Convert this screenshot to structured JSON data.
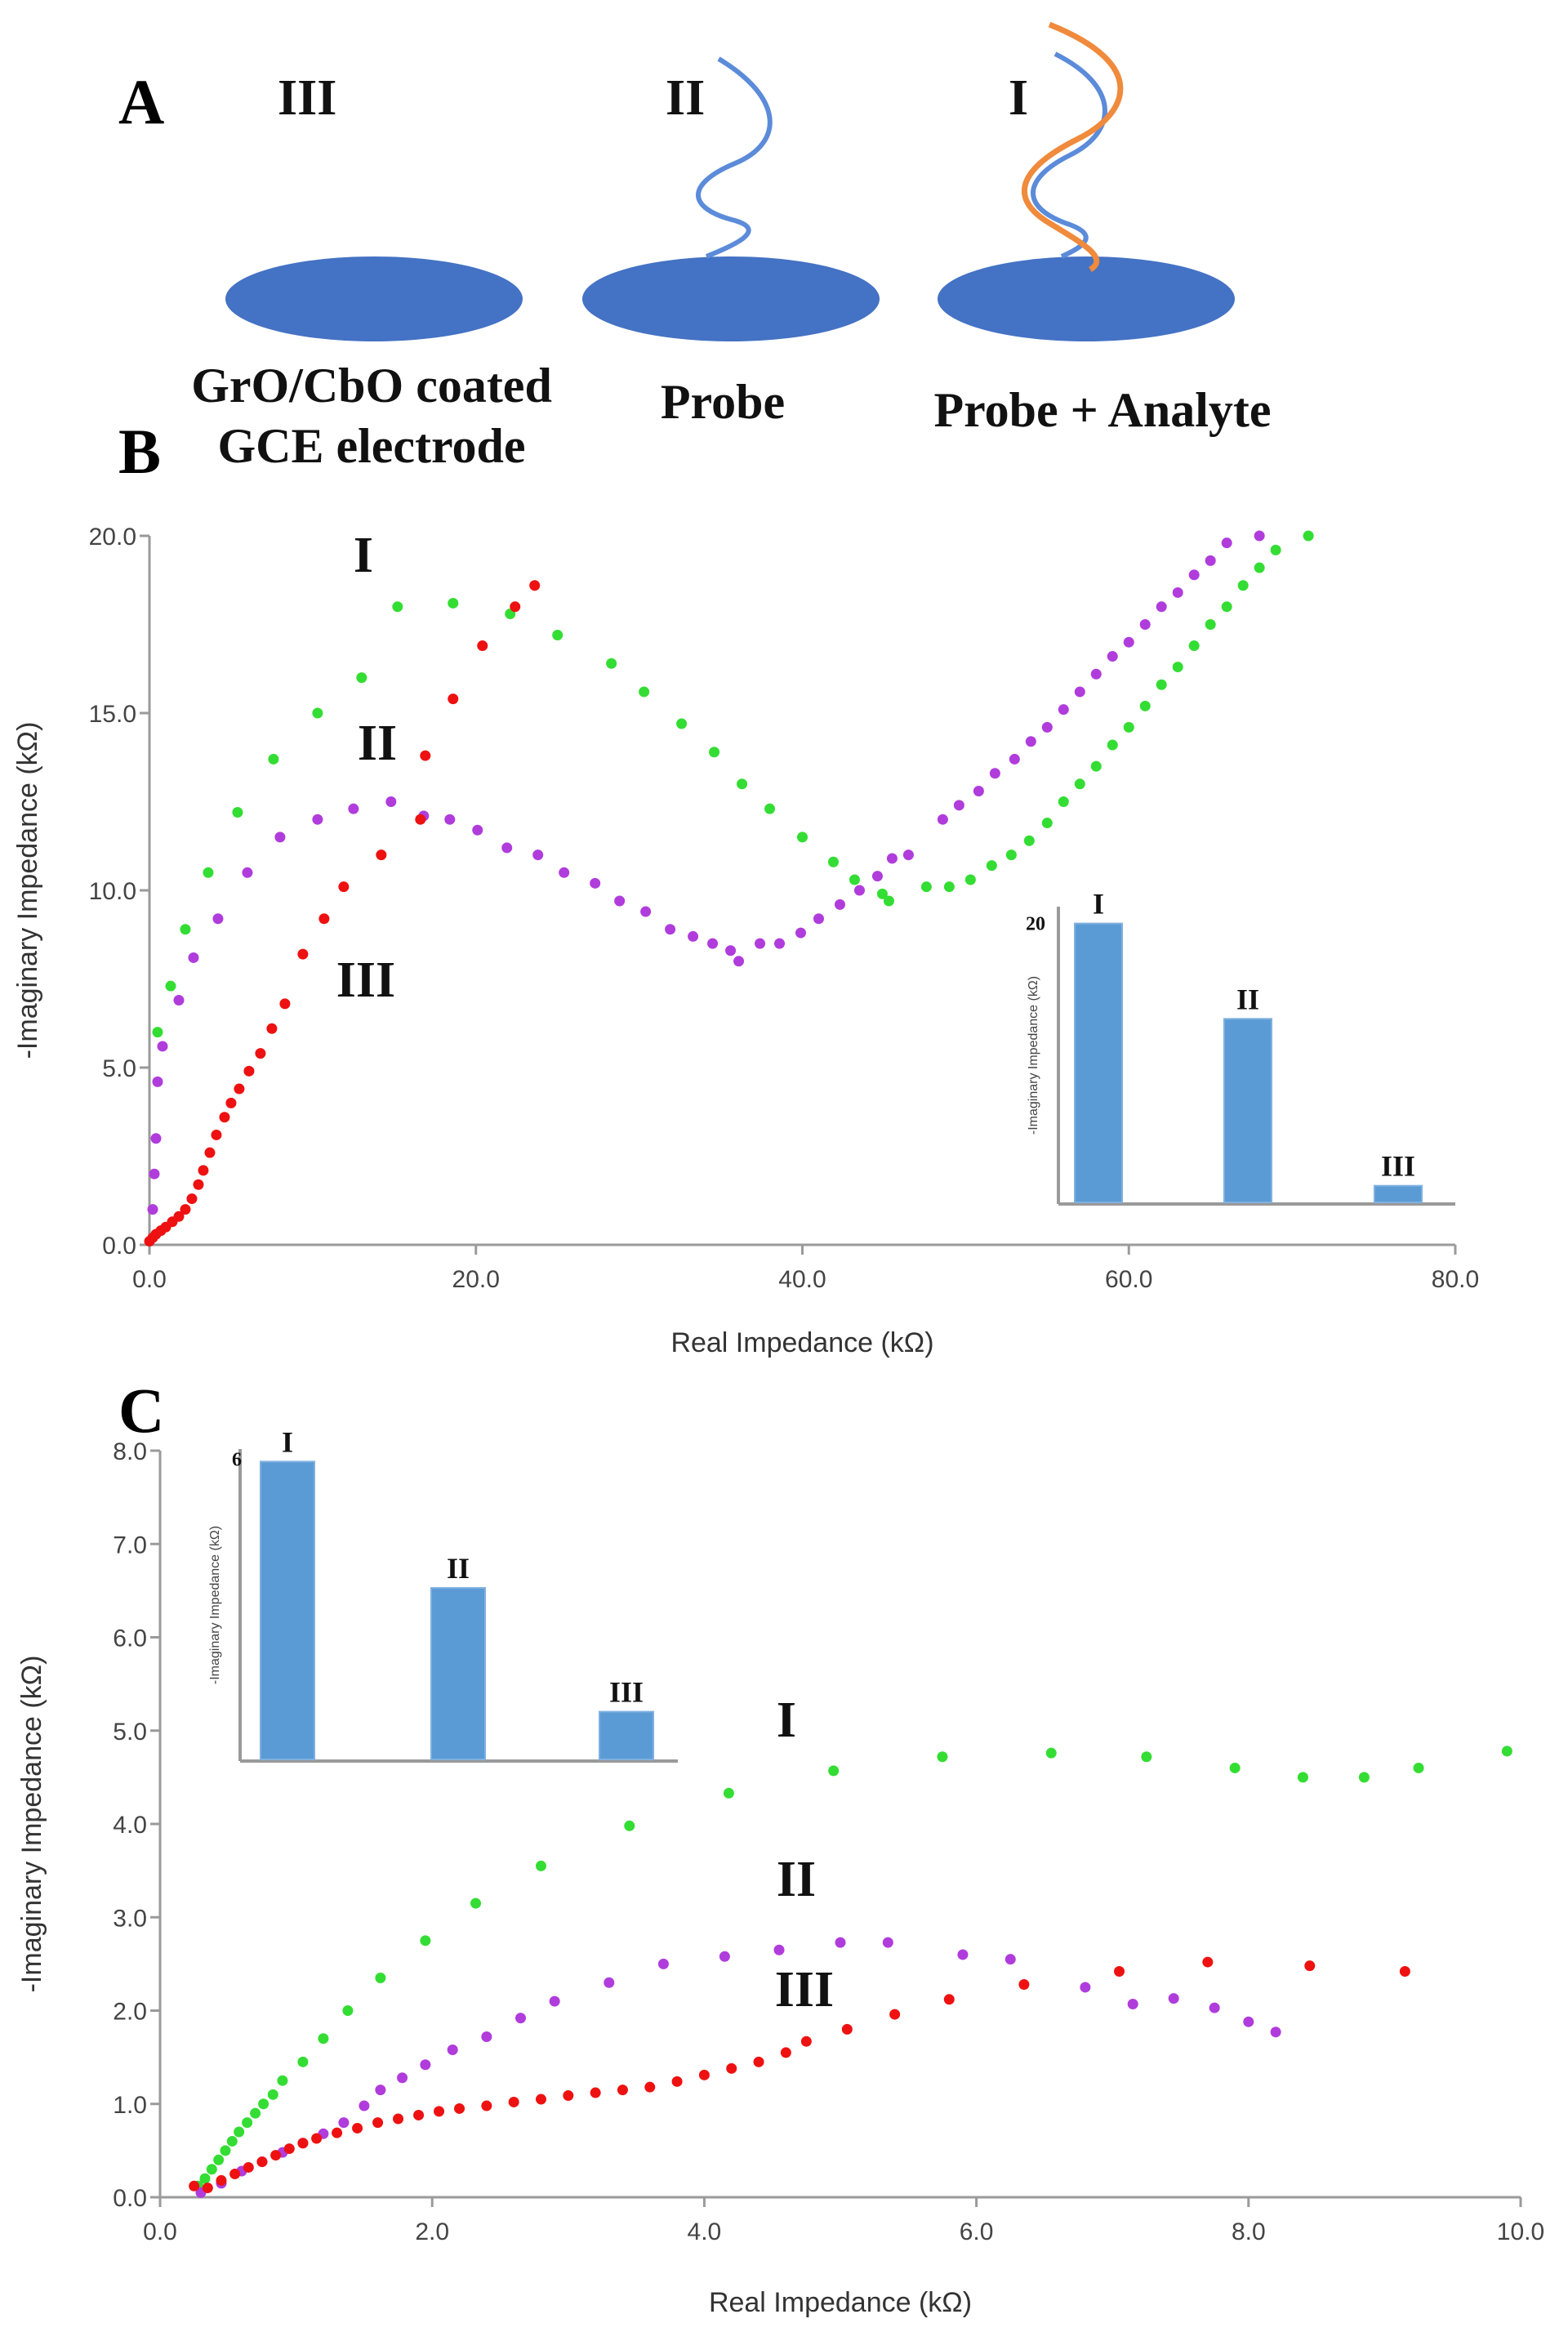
{
  "panel_a": {
    "letter": "A",
    "schematics": [
      {
        "numeral": "III",
        "label_lines": [
          "GrO/CbO coated",
          "GCE electrode"
        ],
        "strands": []
      },
      {
        "numeral": "II",
        "label_lines": [
          "Probe"
        ],
        "strands": [
          "probe"
        ]
      },
      {
        "numeral": "I",
        "label_lines": [
          "Probe + Analyte"
        ],
        "strands": [
          "probe",
          "analyte"
        ]
      }
    ]
  },
  "colors": {
    "electrode": "#4472c4",
    "probe_strand": "#5b8bd9",
    "analyte_strand": "#f08a3c",
    "series_I": "#33dd33",
    "series_II": "#b03cdc",
    "series_III": "#ee1111",
    "inset_bar": "#5b9bd5",
    "axis": "#9a9a9a",
    "tick_text": "#444444"
  },
  "chart_data": [
    {
      "panel": "B",
      "type": "scatter",
      "xlabel": "Real Impedance (kΩ)",
      "ylabel": "-Imaginary Impedance (kΩ)",
      "xlim": [
        0,
        80
      ],
      "ylim": [
        0,
        20
      ],
      "xticks": [
        "0.0",
        "20.0",
        "40.0",
        "60.0",
        "80.0"
      ],
      "xtick_values": [
        0,
        20,
        40,
        60,
        80
      ],
      "yticks": [
        "0.0",
        "5.0",
        "10.0",
        "15.0",
        "20.0"
      ],
      "ytick_values": [
        0,
        5,
        10,
        15,
        20
      ],
      "grid": false,
      "series": [
        {
          "name": "I",
          "color_key": "series_I",
          "points": [
            [
              0.5,
              6
            ],
            [
              1.3,
              7.3
            ],
            [
              2.2,
              8.9
            ],
            [
              3.6,
              10.5
            ],
            [
              5.4,
              12.2
            ],
            [
              7.6,
              13.7
            ],
            [
              10.3,
              15.0
            ],
            [
              13.0,
              16.0
            ],
            [
              15.2,
              18.0
            ],
            [
              18.6,
              18.1
            ],
            [
              22.1,
              17.8
            ],
            [
              25.0,
              17.2
            ],
            [
              28.3,
              16.4
            ],
            [
              30.3,
              15.6
            ],
            [
              32.6,
              14.7
            ],
            [
              34.6,
              13.9
            ],
            [
              36.3,
              13.0
            ],
            [
              38.0,
              12.3
            ],
            [
              40.0,
              11.5
            ],
            [
              41.9,
              10.8
            ],
            [
              43.2,
              10.3
            ],
            [
              44.9,
              9.9
            ],
            [
              45.3,
              9.7
            ],
            [
              47.6,
              10.1
            ],
            [
              49.0,
              10.1
            ],
            [
              50.3,
              10.3
            ],
            [
              51.6,
              10.7
            ],
            [
              52.8,
              11.0
            ],
            [
              53.9,
              11.4
            ],
            [
              55.0,
              11.9
            ],
            [
              56.0,
              12.5
            ],
            [
              57.0,
              13.0
            ],
            [
              58.0,
              13.5
            ],
            [
              59.0,
              14.1
            ],
            [
              60.0,
              14.6
            ],
            [
              61.0,
              15.2
            ],
            [
              62.0,
              15.8
            ],
            [
              63.0,
              16.3
            ],
            [
              64.0,
              16.9
            ],
            [
              65.0,
              17.5
            ],
            [
              66.0,
              18.0
            ],
            [
              67.0,
              18.6
            ],
            [
              68.0,
              19.1
            ],
            [
              69.0,
              19.6
            ],
            [
              71.0,
              20.0
            ]
          ]
        },
        {
          "name": "II",
          "color_key": "series_II",
          "points": [
            [
              0.2,
              1
            ],
            [
              0.3,
              2
            ],
            [
              0.4,
              3
            ],
            [
              0.5,
              4.6
            ],
            [
              0.8,
              5.6
            ],
            [
              1.8,
              6.9
            ],
            [
              2.7,
              8.1
            ],
            [
              4.2,
              9.2
            ],
            [
              6.0,
              10.5
            ],
            [
              8.0,
              11.5
            ],
            [
              10.3,
              12.0
            ],
            [
              12.5,
              12.3
            ],
            [
              14.8,
              12.5
            ],
            [
              16.8,
              12.1
            ],
            [
              18.4,
              12.0
            ],
            [
              20.1,
              11.7
            ],
            [
              21.9,
              11.2
            ],
            [
              23.8,
              11.0
            ],
            [
              25.4,
              10.5
            ],
            [
              27.3,
              10.2
            ],
            [
              28.8,
              9.7
            ],
            [
              30.4,
              9.4
            ],
            [
              31.9,
              8.9
            ],
            [
              33.3,
              8.7
            ],
            [
              34.5,
              8.5
            ],
            [
              35.6,
              8.3
            ],
            [
              36.1,
              8.0
            ],
            [
              37.4,
              8.5
            ],
            [
              38.6,
              8.5
            ],
            [
              39.9,
              8.8
            ],
            [
              41.0,
              9.2
            ],
            [
              42.3,
              9.6
            ],
            [
              43.5,
              10.0
            ],
            [
              44.6,
              10.4
            ],
            [
              45.5,
              10.9
            ],
            [
              46.5,
              11.0
            ],
            [
              48.6,
              12.0
            ],
            [
              49.6,
              12.4
            ],
            [
              50.8,
              12.8
            ],
            [
              51.8,
              13.3
            ],
            [
              53.0,
              13.7
            ],
            [
              54.0,
              14.2
            ],
            [
              55.0,
              14.6
            ],
            [
              56.0,
              15.1
            ],
            [
              57.0,
              15.6
            ],
            [
              58.0,
              16.1
            ],
            [
              59.0,
              16.6
            ],
            [
              60.0,
              17.0
            ],
            [
              61.0,
              17.5
            ],
            [
              62.0,
              18.0
            ],
            [
              63.0,
              18.4
            ],
            [
              64.0,
              18.9
            ],
            [
              65.0,
              19.3
            ],
            [
              66.0,
              19.8
            ],
            [
              68.0,
              20.0
            ]
          ]
        },
        {
          "name": "III",
          "color_key": "series_III",
          "points": [
            [
              0.0,
              0.1
            ],
            [
              0.2,
              0.2
            ],
            [
              0.4,
              0.3
            ],
            [
              0.7,
              0.4
            ],
            [
              1.0,
              0.5
            ],
            [
              1.4,
              0.65
            ],
            [
              1.8,
              0.8
            ],
            [
              2.2,
              1.0
            ],
            [
              2.6,
              1.3
            ],
            [
              3.0,
              1.7
            ],
            [
              3.3,
              2.1
            ],
            [
              3.7,
              2.6
            ],
            [
              4.1,
              3.1
            ],
            [
              4.6,
              3.6
            ],
            [
              5.0,
              4.0
            ],
            [
              5.5,
              4.4
            ],
            [
              6.1,
              4.9
            ],
            [
              6.8,
              5.4
            ],
            [
              7.5,
              6.1
            ],
            [
              8.3,
              6.8
            ],
            [
              9.4,
              8.2
            ],
            [
              10.7,
              9.2
            ],
            [
              11.9,
              10.1
            ],
            [
              14.2,
              11.0
            ],
            [
              16.6,
              12.0
            ],
            [
              16.9,
              13.8
            ],
            [
              18.6,
              15.4
            ],
            [
              20.4,
              16.9
            ],
            [
              22.4,
              18.0
            ],
            [
              23.6,
              18.6
            ]
          ]
        }
      ],
      "annotations": [
        "I",
        "II",
        "III"
      ],
      "inset": {
        "type": "bar",
        "ylabel": "-Imaginary Impedance (kΩ)",
        "ytick_label": "20",
        "ytick_value": 20,
        "ylim": [
          0,
          21.2
        ],
        "categories": [
          "I",
          "II",
          "III"
        ],
        "values": [
          20,
          13.2,
          1.3
        ]
      }
    },
    {
      "panel": "C",
      "type": "scatter",
      "xlabel": "Real Impedance (kΩ)",
      "ylabel": "-Imaginary Impedance (kΩ)",
      "xlim": [
        0,
        10
      ],
      "ylim": [
        0,
        8
      ],
      "xticks": [
        "0.0",
        "2.0",
        "4.0",
        "6.0",
        "8.0",
        "10.0"
      ],
      "xtick_values": [
        0,
        2,
        4,
        6,
        8,
        10
      ],
      "yticks": [
        "0.0",
        "1.0",
        "2.0",
        "3.0",
        "4.0",
        "5.0",
        "6.0",
        "7.0",
        "8.0"
      ],
      "ytick_values": [
        0,
        1,
        2,
        3,
        4,
        5,
        6,
        7,
        8
      ],
      "grid": false,
      "series": [
        {
          "name": "I",
          "color_key": "series_I",
          "points": [
            [
              0.28,
              0.12
            ],
            [
              0.33,
              0.2
            ],
            [
              0.38,
              0.3
            ],
            [
              0.43,
              0.4
            ],
            [
              0.48,
              0.5
            ],
            [
              0.53,
              0.6
            ],
            [
              0.58,
              0.7
            ],
            [
              0.64,
              0.8
            ],
            [
              0.7,
              0.9
            ],
            [
              0.76,
              1.0
            ],
            [
              0.83,
              1.1
            ],
            [
              0.9,
              1.25
            ],
            [
              1.05,
              1.45
            ],
            [
              1.2,
              1.7
            ],
            [
              1.38,
              2.0
            ],
            [
              1.62,
              2.35
            ],
            [
              1.95,
              2.75
            ],
            [
              2.32,
              3.15
            ],
            [
              2.8,
              3.55
            ],
            [
              3.45,
              3.98
            ],
            [
              4.18,
              4.33
            ],
            [
              4.95,
              4.57
            ],
            [
              5.75,
              4.72
            ],
            [
              6.55,
              4.76
            ],
            [
              7.25,
              4.72
            ],
            [
              7.9,
              4.6
            ],
            [
              8.4,
              4.5
            ],
            [
              8.85,
              4.5
            ],
            [
              9.25,
              4.6
            ],
            [
              9.9,
              4.78
            ]
          ]
        },
        {
          "name": "II",
          "color_key": "series_II",
          "points": [
            [
              0.3,
              0.05
            ],
            [
              0.45,
              0.15
            ],
            [
              0.6,
              0.28
            ],
            [
              0.75,
              0.38
            ],
            [
              0.9,
              0.48
            ],
            [
              1.05,
              0.58
            ],
            [
              1.2,
              0.68
            ],
            [
              1.35,
              0.8
            ],
            [
              1.5,
              0.98
            ],
            [
              1.62,
              1.15
            ],
            [
              1.78,
              1.28
            ],
            [
              1.95,
              1.42
            ],
            [
              2.15,
              1.58
            ],
            [
              2.4,
              1.72
            ],
            [
              2.65,
              1.92
            ],
            [
              2.9,
              2.1
            ],
            [
              3.3,
              2.3
            ],
            [
              3.7,
              2.5
            ],
            [
              4.15,
              2.58
            ],
            [
              4.55,
              2.65
            ],
            [
              5.0,
              2.73
            ],
            [
              5.35,
              2.73
            ],
            [
              5.9,
              2.6
            ],
            [
              6.25,
              2.55
            ],
            [
              6.8,
              2.25
            ],
            [
              7.15,
              2.07
            ],
            [
              7.45,
              2.13
            ],
            [
              7.75,
              2.03
            ],
            [
              8.0,
              1.88
            ],
            [
              8.2,
              1.77
            ]
          ]
        },
        {
          "name": "III",
          "color_key": "series_III",
          "points": [
            [
              0.25,
              0.12
            ],
            [
              0.35,
              0.1
            ],
            [
              0.45,
              0.18
            ],
            [
              0.55,
              0.25
            ],
            [
              0.65,
              0.32
            ],
            [
              0.75,
              0.38
            ],
            [
              0.85,
              0.45
            ],
            [
              0.95,
              0.52
            ],
            [
              1.05,
              0.58
            ],
            [
              1.15,
              0.63
            ],
            [
              1.3,
              0.69
            ],
            [
              1.45,
              0.74
            ],
            [
              1.6,
              0.8
            ],
            [
              1.75,
              0.84
            ],
            [
              1.9,
              0.88
            ],
            [
              2.05,
              0.92
            ],
            [
              2.2,
              0.95
            ],
            [
              2.4,
              0.98
            ],
            [
              2.6,
              1.02
            ],
            [
              2.8,
              1.05
            ],
            [
              3.0,
              1.09
            ],
            [
              3.2,
              1.12
            ],
            [
              3.4,
              1.15
            ],
            [
              3.6,
              1.18
            ],
            [
              3.8,
              1.24
            ],
            [
              4.0,
              1.31
            ],
            [
              4.2,
              1.38
            ],
            [
              4.4,
              1.45
            ],
            [
              4.6,
              1.55
            ],
            [
              4.75,
              1.67
            ],
            [
              5.05,
              1.8
            ],
            [
              5.4,
              1.96
            ],
            [
              5.8,
              2.12
            ],
            [
              6.35,
              2.28
            ],
            [
              7.05,
              2.42
            ],
            [
              7.7,
              2.52
            ],
            [
              8.45,
              2.48
            ],
            [
              9.15,
              2.42
            ]
          ]
        }
      ],
      "annotations": [
        "I",
        "II",
        "III"
      ],
      "inset": {
        "type": "bar",
        "ylabel": "-Imaginary Impedance (kΩ)",
        "ytick_label": "6",
        "ytick_value": 6,
        "ylim": [
          0,
          6.2
        ],
        "categories": [
          "I",
          "II",
          "III"
        ],
        "values": [
          5.95,
          3.44,
          0.98
        ]
      }
    }
  ]
}
